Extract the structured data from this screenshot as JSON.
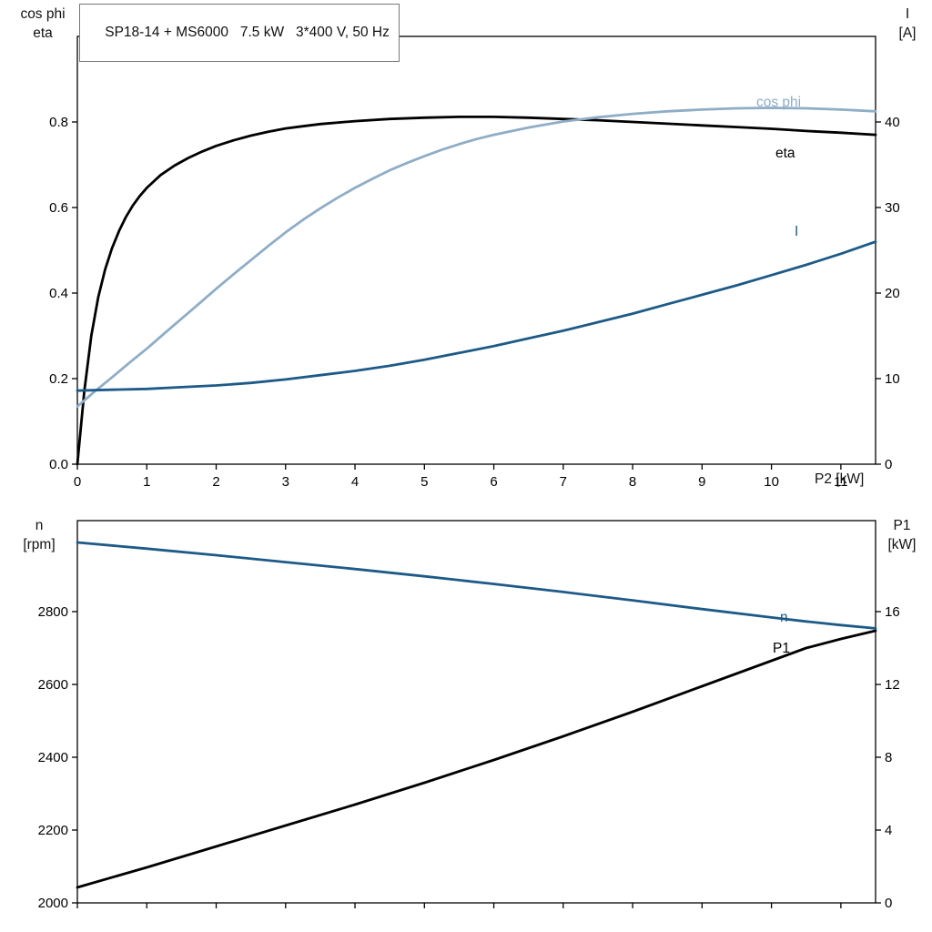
{
  "colors": {
    "black": "#000000",
    "light_blue": "#8fadc6",
    "dark_blue": "#1d5a87"
  },
  "chart_data": [
    {
      "id": "top",
      "type": "line",
      "title": "SP18-14 + MS6000   7.5 kW   3*400 V, 50 Hz",
      "x_label": "P2 [kW]",
      "y_left_label": [
        "cos phi",
        "eta"
      ],
      "y_right_label": [
        "I",
        "[A]"
      ],
      "grid": false,
      "legend_position": "inline-right",
      "x_range": [
        0,
        11.5
      ],
      "x_ticks": [
        0,
        1,
        2,
        3,
        4,
        5,
        6,
        7,
        8,
        9,
        10,
        11
      ],
      "x_tick_labels": [
        "0",
        "1",
        "2",
        "3",
        "4",
        "5",
        "6",
        "7",
        "8",
        "9",
        "10",
        "11"
      ],
      "y_left_range": [
        0,
        1.0
      ],
      "y_left_ticks": [
        0,
        0.2,
        0.4,
        0.6,
        0.8
      ],
      "y_left_tick_labels": [
        "0.0",
        "0.2",
        "0.4",
        "0.6",
        "0.8"
      ],
      "y_right_range": [
        0,
        50
      ],
      "y_right_ticks": [
        0,
        10,
        20,
        30,
        40
      ],
      "y_right_tick_labels": [
        "0",
        "10",
        "20",
        "30",
        "40"
      ],
      "series": [
        {
          "name": "eta",
          "label": "eta",
          "axis": "left",
          "color_key": "black",
          "points": [
            [
              0,
              0
            ],
            [
              0.1,
              0.17
            ],
            [
              0.2,
              0.3
            ],
            [
              0.3,
              0.39
            ],
            [
              0.4,
              0.455
            ],
            [
              0.5,
              0.505
            ],
            [
              0.6,
              0.545
            ],
            [
              0.7,
              0.578
            ],
            [
              0.8,
              0.605
            ],
            [
              0.9,
              0.627
            ],
            [
              1.0,
              0.646
            ],
            [
              1.2,
              0.676
            ],
            [
              1.4,
              0.698
            ],
            [
              1.6,
              0.716
            ],
            [
              1.8,
              0.731
            ],
            [
              2.0,
              0.744
            ],
            [
              2.25,
              0.757
            ],
            [
              2.5,
              0.768
            ],
            [
              2.75,
              0.777
            ],
            [
              3.0,
              0.785
            ],
            [
              3.25,
              0.79
            ],
            [
              3.5,
              0.795
            ],
            [
              4.0,
              0.802
            ],
            [
              4.5,
              0.807
            ],
            [
              5.0,
              0.81
            ],
            [
              5.5,
              0.812
            ],
            [
              6.0,
              0.812
            ],
            [
              6.5,
              0.81
            ],
            [
              7.0,
              0.807
            ],
            [
              7.5,
              0.804
            ],
            [
              8.0,
              0.8
            ],
            [
              8.5,
              0.796
            ],
            [
              9.0,
              0.792
            ],
            [
              9.5,
              0.788
            ],
            [
              10.0,
              0.784
            ],
            [
              10.5,
              0.779
            ],
            [
              11.0,
              0.775
            ],
            [
              11.5,
              0.77
            ]
          ]
        },
        {
          "name": "cos-phi",
          "label": "cos phi",
          "axis": "left",
          "color_key": "light_blue",
          "points": [
            [
              0,
              0.135
            ],
            [
              0.25,
              0.17
            ],
            [
              0.5,
              0.203
            ],
            [
              0.75,
              0.237
            ],
            [
              1.0,
              0.27
            ],
            [
              1.25,
              0.305
            ],
            [
              1.5,
              0.34
            ],
            [
              1.75,
              0.375
            ],
            [
              2.0,
              0.41
            ],
            [
              2.25,
              0.444
            ],
            [
              2.5,
              0.477
            ],
            [
              2.75,
              0.51
            ],
            [
              3.0,
              0.542
            ],
            [
              3.25,
              0.571
            ],
            [
              3.5,
              0.598
            ],
            [
              3.75,
              0.623
            ],
            [
              4.0,
              0.646
            ],
            [
              4.25,
              0.667
            ],
            [
              4.5,
              0.687
            ],
            [
              4.75,
              0.704
            ],
            [
              5.0,
              0.72
            ],
            [
              5.25,
              0.735
            ],
            [
              5.5,
              0.748
            ],
            [
              5.75,
              0.76
            ],
            [
              6.0,
              0.77
            ],
            [
              6.5,
              0.787
            ],
            [
              7.0,
              0.801
            ],
            [
              7.5,
              0.811
            ],
            [
              8.0,
              0.819
            ],
            [
              8.5,
              0.825
            ],
            [
              9.0,
              0.829
            ],
            [
              9.5,
              0.832
            ],
            [
              10.0,
              0.833
            ],
            [
              10.5,
              0.832
            ],
            [
              11.0,
              0.829
            ],
            [
              11.5,
              0.825
            ]
          ]
        },
        {
          "name": "current",
          "label": "I",
          "axis": "right",
          "color_key": "dark_blue",
          "points": [
            [
              0,
              8.6
            ],
            [
              0.5,
              8.7
            ],
            [
              1,
              8.8
            ],
            [
              1.5,
              9.0
            ],
            [
              2,
              9.2
            ],
            [
              2.5,
              9.5
            ],
            [
              3,
              9.9
            ],
            [
              3.5,
              10.4
            ],
            [
              4,
              10.9
            ],
            [
              4.5,
              11.5
            ],
            [
              5,
              12.2
            ],
            [
              5.5,
              13.0
            ],
            [
              6,
              13.8
            ],
            [
              6.5,
              14.7
            ],
            [
              7,
              15.6
            ],
            [
              7.5,
              16.6
            ],
            [
              8,
              17.6
            ],
            [
              8.5,
              18.7
            ],
            [
              9,
              19.8
            ],
            [
              9.5,
              20.9
            ],
            [
              10,
              22.1
            ],
            [
              10.5,
              23.3
            ],
            [
              11,
              24.6
            ],
            [
              11.5,
              26.0
            ]
          ]
        }
      ]
    },
    {
      "id": "bottom",
      "type": "line",
      "title": "",
      "x_label": "",
      "y_left_label": [
        "n",
        "[rpm]"
      ],
      "y_right_label": [
        "P1",
        "[kW]"
      ],
      "grid": false,
      "x_range": [
        0,
        11.5
      ],
      "x_ticks": [
        0,
        1,
        2,
        3,
        4,
        5,
        6,
        7,
        8,
        9,
        10,
        11
      ],
      "x_tick_labels": null,
      "y_left_range": [
        2000,
        3050
      ],
      "y_left_ticks": [
        2000,
        2200,
        2400,
        2600,
        2800
      ],
      "y_left_tick_labels": [
        "2000",
        "2200",
        "2400",
        "2600",
        "2800"
      ],
      "y_right_range": [
        0,
        21
      ],
      "y_right_ticks": [
        0,
        4,
        8,
        12,
        16
      ],
      "y_right_tick_labels": [
        "0",
        "4",
        "8",
        "12",
        "16"
      ],
      "series": [
        {
          "name": "speed",
          "label": "n",
          "axis": "left",
          "color_key": "dark_blue",
          "points": [
            [
              0,
              2990
            ],
            [
              1,
              2973
            ],
            [
              2,
              2955
            ],
            [
              3,
              2936
            ],
            [
              4,
              2917
            ],
            [
              5,
              2897
            ],
            [
              6,
              2876
            ],
            [
              7,
              2854
            ],
            [
              8,
              2831
            ],
            [
              9,
              2807
            ],
            [
              10,
              2784
            ],
            [
              10.5,
              2773
            ],
            [
              11,
              2763
            ],
            [
              11.5,
              2754
            ]
          ]
        },
        {
          "name": "p1",
          "label": "P1",
          "axis": "right",
          "color_key": "black",
          "points": [
            [
              0,
              0.85
            ],
            [
              1,
              1.95
            ],
            [
              2,
              3.1
            ],
            [
              3,
              4.25
            ],
            [
              4,
              5.4
            ],
            [
              5,
              6.6
            ],
            [
              6,
              7.85
            ],
            [
              7,
              9.15
            ],
            [
              8,
              10.5
            ],
            [
              9,
              11.9
            ],
            [
              10,
              13.3
            ],
            [
              10.5,
              14.0
            ],
            [
              11,
              14.5
            ],
            [
              11.5,
              14.95
            ]
          ]
        }
      ]
    }
  ]
}
